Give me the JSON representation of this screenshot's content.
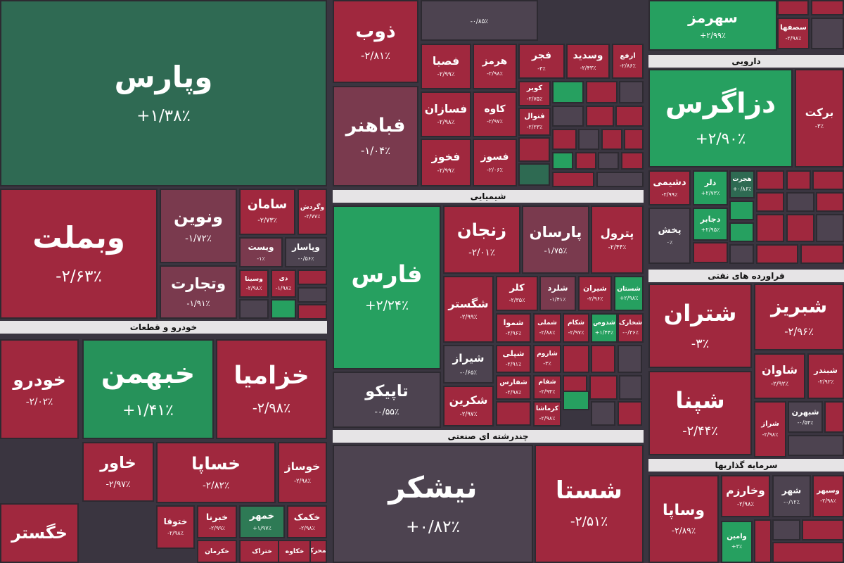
{
  "sectors": [
    {
      "label": "خودرو و قطعات"
    },
    {
      "label": "شیمیایی"
    },
    {
      "label": "دارویی"
    },
    {
      "label": "فراورده های نفتی"
    },
    {
      "label": "چندرشته ای صنعتی"
    },
    {
      "label": "سرمایه گذاریها"
    }
  ],
  "tiles": [
    {
      "name": "وپارس",
      "change": "+۱/۳۸٪",
      "color": "#2f6a53"
    },
    {
      "name": "ذوب",
      "change": "-۲/۸۱٪",
      "color": "#a0283e"
    },
    {
      "name": "فباهنر",
      "change": "-۱/۰۴٪",
      "color": "#7a3a4e"
    },
    {
      "change": "-۰/۸۵٪",
      "color": "#4d4350"
    },
    {
      "name": "فصبا",
      "change": "-۲/۹۹٪",
      "color": "#a0283e"
    },
    {
      "name": "هرمز",
      "change": "-۲/۹۸٪",
      "color": "#a0283e"
    },
    {
      "name": "فجر",
      "change": "-۳٪",
      "color": "#a0283e"
    },
    {
      "name": "وسدید",
      "change": "-۲/۴۳٪",
      "color": "#a0283e"
    },
    {
      "name": "ارفع",
      "change": "-۲/۸۶٪",
      "color": "#a0283e"
    },
    {
      "name": "فسازان",
      "change": "-۲/۹۸٪",
      "color": "#a0283e"
    },
    {
      "name": "کاوه",
      "change": "-۲/۹۷٪",
      "color": "#a0283e"
    },
    {
      "name": "فخوز",
      "change": "-۲/۹۹٪",
      "color": "#a0283e"
    },
    {
      "name": "فسوز",
      "change": "-۲/۰۶٪",
      "color": "#a0283e"
    },
    {
      "name": "کویر",
      "change": "-۲/۷۵٪",
      "color": "#a0283e"
    },
    {
      "name": "فنوال",
      "change": "-۲/۲۳٪",
      "color": "#a0283e"
    },
    {
      "name": "سهرمز",
      "change": "+۲/۹۹٪",
      "color": "#26a060"
    },
    {
      "name": "سصفها",
      "change": "-۲/۹۸٪",
      "color": "#a0283e"
    },
    {
      "name": "دزاگرس",
      "change": "+۲/۹۰٪",
      "color": "#26a060"
    },
    {
      "name": "برکت",
      "change": "-۳٪",
      "color": "#a0283e"
    },
    {
      "name": "دشیمی",
      "change": "-۲/۹۹٪",
      "color": "#a0283e"
    },
    {
      "name": "دلر",
      "change": "+۲/۷۳٪",
      "color": "#26a060"
    },
    {
      "name": "هجرت",
      "change": "+۰/۸۶٪",
      "color": "#2e6a52"
    },
    {
      "name": "دجابر",
      "change": "+۲/۹۵٪",
      "color": "#26a060"
    },
    {
      "name": "پخش",
      "change": "۰٪",
      "color": "#4d4350"
    },
    {
      "name": "شتران",
      "change": "-۳٪",
      "color": "#a0283e"
    },
    {
      "name": "شبریز",
      "change": "-۲/۹۶٪",
      "color": "#a0283e"
    },
    {
      "name": "شاوان",
      "change": "-۲/۹۲٪",
      "color": "#a0283e"
    },
    {
      "name": "شبندر",
      "change": "-۲/۹۲٪",
      "color": "#a0283e"
    },
    {
      "name": "شپنا",
      "change": "-۲/۴۴٪",
      "color": "#a0283e"
    },
    {
      "name": "شراز",
      "change": "-۲/۹۸٪",
      "color": "#a0283e"
    },
    {
      "name": "شبهرن",
      "change": "-۰/۵۴٪",
      "color": "#4d4350"
    },
    {
      "name": "وساپا",
      "change": "-۲/۸۹٪",
      "color": "#a0283e"
    },
    {
      "name": "وخارزم",
      "change": "-۲/۹۸٪",
      "color": "#a0283e"
    },
    {
      "name": "شهر",
      "change": "-۰/۱۲٪",
      "color": "#4d4350"
    },
    {
      "name": "وسبهر",
      "change": "-۲/۹۸٪",
      "color": "#a0283e"
    },
    {
      "name": "وامین",
      "change": "+۳٪",
      "color": "#26a060"
    },
    {
      "name": "فارس",
      "change": "+۲/۲۴٪",
      "color": "#26a060"
    },
    {
      "name": "تاپیکو",
      "change": "-۰/۵۵٪",
      "color": "#4d4350"
    },
    {
      "name": "زنجان",
      "change": "-۲/۰۱٪",
      "color": "#a0283e"
    },
    {
      "name": "پارسان",
      "change": "-۱/۷۵٪",
      "color": "#7a3a4e"
    },
    {
      "name": "پترول",
      "change": "-۲/۴۴٪",
      "color": "#a0283e"
    },
    {
      "name": "شگستر",
      "change": "-۲/۹۹٪",
      "color": "#a0283e"
    },
    {
      "name": "کلر",
      "change": "-۲/۳۵٪",
      "color": "#a0283e"
    },
    {
      "name": "شلرد",
      "change": "-۱/۴۱٪",
      "color": "#7a3a4e"
    },
    {
      "name": "شیران",
      "change": "-۲/۹۶٪",
      "color": "#a0283e"
    },
    {
      "name": "شستان",
      "change": "+۲/۹۸٪",
      "color": "#26a060"
    },
    {
      "name": "شیراز",
      "change": "-۰/۶۵٪",
      "color": "#4d4350"
    },
    {
      "name": "شموا",
      "change": "-۲/۹۶٪",
      "color": "#a0283e"
    },
    {
      "name": "شملی",
      "change": "-۲/۸۸٪",
      "color": "#a0283e"
    },
    {
      "name": "شکام",
      "change": "-۲/۹۷٪",
      "color": "#a0283e"
    },
    {
      "name": "شدوص",
      "change": "+۱/۴۴٪",
      "color": "#26a060"
    },
    {
      "name": "شخارک",
      "change": "-۰/۳۶٪",
      "color": "#a0283e"
    },
    {
      "name": "شپلی",
      "change": "-۲/۹۱٪",
      "color": "#a0283e"
    },
    {
      "name": "شاروم",
      "change": "-۳٪",
      "color": "#a0283e"
    },
    {
      "name": "شفارس",
      "change": "-۲/۹۸٪",
      "color": "#a0283e"
    },
    {
      "name": "شفام",
      "change": "-۲/۹۴٪",
      "color": "#a0283e"
    },
    {
      "name": "شکرین",
      "change": "-۲/۹۷٪",
      "color": "#a0283e"
    },
    {
      "name": "کرماشا",
      "change": "-۲/۹۸٪",
      "color": "#a0283e"
    },
    {
      "name": "نیشکر",
      "change": "+۰/۸۲٪",
      "color": "#4d4350"
    },
    {
      "name": "شستا",
      "change": "-۲/۵۱٪",
      "color": "#a0283e"
    },
    {
      "name": "وبملت",
      "change": "-۲/۶۳٪",
      "color": "#a0283e"
    },
    {
      "name": "ونوین",
      "change": "-۱/۷۲٪",
      "color": "#7a3a4e"
    },
    {
      "name": "سامان",
      "change": "-۲/۷۳٪",
      "color": "#a0283e"
    },
    {
      "name": "وگردش",
      "change": "-۲/۷۷٪",
      "color": "#a0283e"
    },
    {
      "name": "وتجارت",
      "change": "-۱/۹۱٪",
      "color": "#7a3a4e"
    },
    {
      "name": "ویست",
      "change": "-۱٪",
      "color": "#7a3a4e"
    },
    {
      "name": "وپاسار",
      "change": "-۰/۵۶٪",
      "color": "#4d4350"
    },
    {
      "name": "وسینا",
      "change": "-۲/۹۸٪",
      "color": "#a0283e"
    },
    {
      "name": "دی",
      "change": "-۱/۹۸٪",
      "color": "#a0283e"
    },
    {
      "name": "خودرو",
      "change": "-۲/۰۲٪",
      "color": "#a0283e"
    },
    {
      "name": "خبهمن",
      "change": "+۱/۴۱٪",
      "color": "#26925a"
    },
    {
      "name": "خزامیا",
      "change": "-۲/۹۸٪",
      "color": "#a0283e"
    },
    {
      "name": "خاور",
      "change": "-۲/۹۷٪",
      "color": "#a0283e"
    },
    {
      "name": "خساپا",
      "change": "-۲/۸۲٪",
      "color": "#a0283e"
    },
    {
      "name": "خوساز",
      "change": "-۲/۹۸٪",
      "color": "#a0283e"
    },
    {
      "name": "خگستر",
      "color": "#a0283e"
    },
    {
      "name": "ختوقا",
      "change": "-۲/۹۸٪",
      "color": "#a0283e"
    },
    {
      "name": "خبرنا",
      "change": "-۲/۹۹٪",
      "color": "#a0283e"
    },
    {
      "name": "خمهر",
      "change": "+۱/۹۷٪",
      "color": "#2e7a55"
    },
    {
      "name": "خکمک",
      "change": "-۲/۹۸٪",
      "color": "#a0283e"
    },
    {
      "name": "خکرمان",
      "color": "#a0283e"
    },
    {
      "name": "ختراک",
      "color": "#a0283e"
    },
    {
      "name": "خکاوه",
      "color": "#a0283e"
    },
    {
      "name": "فمحرکه",
      "color": "#a0283e"
    }
  ]
}
